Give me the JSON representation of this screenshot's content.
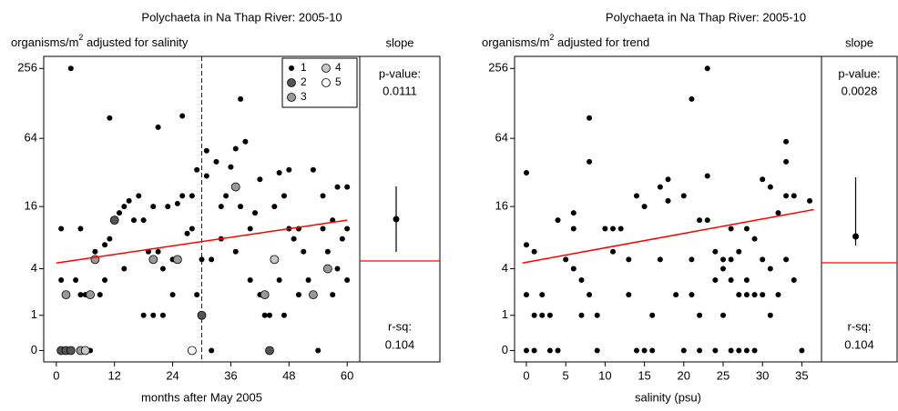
{
  "chart_data": [
    {
      "type": "scatter",
      "title": "Polychaeta in Na Thap River: 2005-10",
      "ylabel": "organisms/m",
      "ylabel_sup": "2",
      "ylabel_rest": " adjusted for salinity",
      "xlabel": "months after May 2005",
      "xlim": [
        -2.6,
        62.6
      ],
      "xticks": [
        0,
        12,
        24,
        36,
        48,
        60
      ],
      "ylim": [
        -0.2,
        325
      ],
      "yticks": [
        0,
        1,
        4,
        16,
        64,
        256
      ],
      "yscale": "log1p",
      "legend": true,
      "legend_position": "upper right",
      "vline": {
        "x": 30,
        "color": "#0000ff"
      },
      "trend": {
        "color": "#ff0000",
        "x": [
          0,
          60
        ],
        "y": [
          4.6,
          12
        ]
      },
      "series": [
        {
          "name": "1",
          "color": "#000000",
          "x": [
            3,
            11,
            1,
            5,
            1,
            2,
            4,
            6,
            5,
            8,
            9,
            10,
            10,
            11,
            12,
            13,
            14,
            14,
            15,
            16,
            17,
            18,
            18,
            19,
            20,
            20,
            21,
            21,
            22,
            22,
            23,
            24,
            25,
            24,
            26,
            26,
            27,
            28,
            28,
            29,
            29,
            30,
            31,
            31,
            32,
            32,
            33,
            34,
            34,
            35,
            36,
            37,
            37,
            38,
            38,
            39,
            40,
            40,
            41,
            42,
            42,
            43,
            44,
            45,
            46,
            46,
            47,
            47,
            48,
            48,
            49,
            50,
            50,
            51,
            52,
            53,
            53,
            54,
            55,
            55,
            56,
            57,
            57,
            58,
            58,
            59,
            60,
            60,
            60,
            7
          ],
          "values": [
            256,
            96,
            10,
            10,
            3,
            2,
            3,
            2,
            2,
            6,
            2,
            3,
            7,
            8,
            12,
            14,
            16,
            4,
            18,
            12,
            20,
            12,
            1,
            6,
            16,
            1,
            6,
            80,
            4,
            1,
            16,
            5,
            17,
            2,
            100,
            20,
            9,
            10,
            20,
            34,
            2,
            5,
            50,
            30,
            0,
            5,
            40,
            16,
            8,
            20,
            36,
            6,
            52,
            140,
            16,
            60,
            3,
            10,
            14,
            28,
            2,
            1,
            1,
            16,
            3,
            32,
            20,
            1,
            34,
            10,
            8,
            2,
            10,
            6,
            3,
            2,
            34,
            0,
            20,
            10,
            6,
            2,
            12,
            24,
            4,
            8,
            24,
            3,
            10,
            0
          ]
        },
        {
          "name": "2",
          "color": "#555555",
          "x": [
            1,
            2,
            3,
            12,
            30,
            44
          ],
          "values": [
            0,
            0,
            0,
            12,
            1,
            0
          ]
        },
        {
          "name": "3",
          "color": "#999999",
          "x": [
            5,
            2,
            7,
            8,
            20,
            25,
            37,
            43,
            53,
            56
          ],
          "values": [
            0,
            2,
            2,
            5,
            5,
            5,
            24,
            2,
            2,
            4
          ]
        },
        {
          "name": "4",
          "color": "#c8c8c8",
          "x": [
            6,
            45
          ],
          "values": [
            0,
            5
          ]
        },
        {
          "name": "5",
          "color": "#ffffff",
          "x": [
            28
          ],
          "values": [
            0
          ]
        }
      ],
      "slope": {
        "label": "slope",
        "p_label": "p-value:",
        "p_value": "0.0111",
        "r_label": "r-sq:",
        "r_value": "0.104",
        "estimate": 0.46,
        "ci": [
          0.1,
          0.82
        ],
        "zero": 0,
        "color": "#ff0000",
        "lim": [
          -1.11,
          2.25
        ]
      }
    },
    {
      "type": "scatter",
      "title": "Polychaeta in Na Thap River: 2005-10",
      "ylabel": "organisms/m",
      "ylabel_sup": "2",
      "ylabel_rest": " adjusted for trend",
      "xlabel": "salinity (psu)",
      "xlim": [
        -1.5,
        37.5
      ],
      "xticks": [
        0,
        5,
        10,
        15,
        20,
        25,
        30,
        35
      ],
      "ylim": [
        -0.2,
        325
      ],
      "yticks": [
        0,
        1,
        4,
        16,
        64,
        256
      ],
      "yscale": "log1p",
      "legend": false,
      "trend": {
        "color": "#ff0000",
        "x": [
          -0.5,
          36.5
        ],
        "y": [
          4.6,
          15
        ]
      },
      "series": [
        {
          "color": "#000000",
          "x": [
            0,
            0,
            0,
            0,
            1,
            1,
            1,
            2,
            2,
            3,
            3,
            4,
            4,
            5,
            6,
            6,
            6,
            7,
            7,
            8,
            8,
            8,
            9,
            9,
            10,
            11,
            11,
            12,
            13,
            13,
            14,
            14,
            15,
            15,
            16,
            16,
            17,
            17,
            18,
            18,
            19,
            20,
            20,
            21,
            21,
            21,
            22,
            22,
            22,
            23,
            23,
            23,
            24,
            24,
            24,
            25,
            25,
            25,
            26,
            26,
            26,
            26,
            27,
            27,
            27,
            28,
            28,
            28,
            28,
            29,
            29,
            29,
            30,
            30,
            30,
            31,
            31,
            31,
            32,
            32,
            33,
            33,
            33,
            33,
            34,
            34,
            35,
            36
          ],
          "values": [
            32,
            7,
            2,
            0,
            6,
            0,
            1,
            2,
            1,
            1,
            0,
            12,
            0,
            5,
            14,
            10,
            4,
            3,
            1,
            96,
            40,
            2,
            1,
            0,
            10,
            6,
            10,
            10,
            2,
            5,
            20,
            0,
            16,
            0,
            1,
            0,
            24,
            5,
            28,
            18,
            2,
            20,
            0,
            5,
            2,
            140,
            12,
            1,
            0,
            256,
            30,
            12,
            6,
            3,
            0,
            5,
            4,
            1,
            10,
            5,
            3,
            0,
            6,
            2,
            0,
            10,
            3,
            2,
            0,
            8,
            2,
            0,
            5,
            2,
            28,
            24,
            4,
            1,
            14,
            2,
            60,
            40,
            20,
            5,
            3,
            20,
            0,
            18
          ]
        }
      ],
      "slope": {
        "label": "slope",
        "p_label": "p-value:",
        "p_value": "0.0028",
        "r_label": "r-sq:",
        "r_value": "0.104",
        "estimate": 0.29,
        "ci": [
          0.19,
          0.94
        ],
        "zero": 0,
        "color": "#ff0000",
        "lim": [
          -1.09,
          2.27
        ]
      }
    }
  ]
}
